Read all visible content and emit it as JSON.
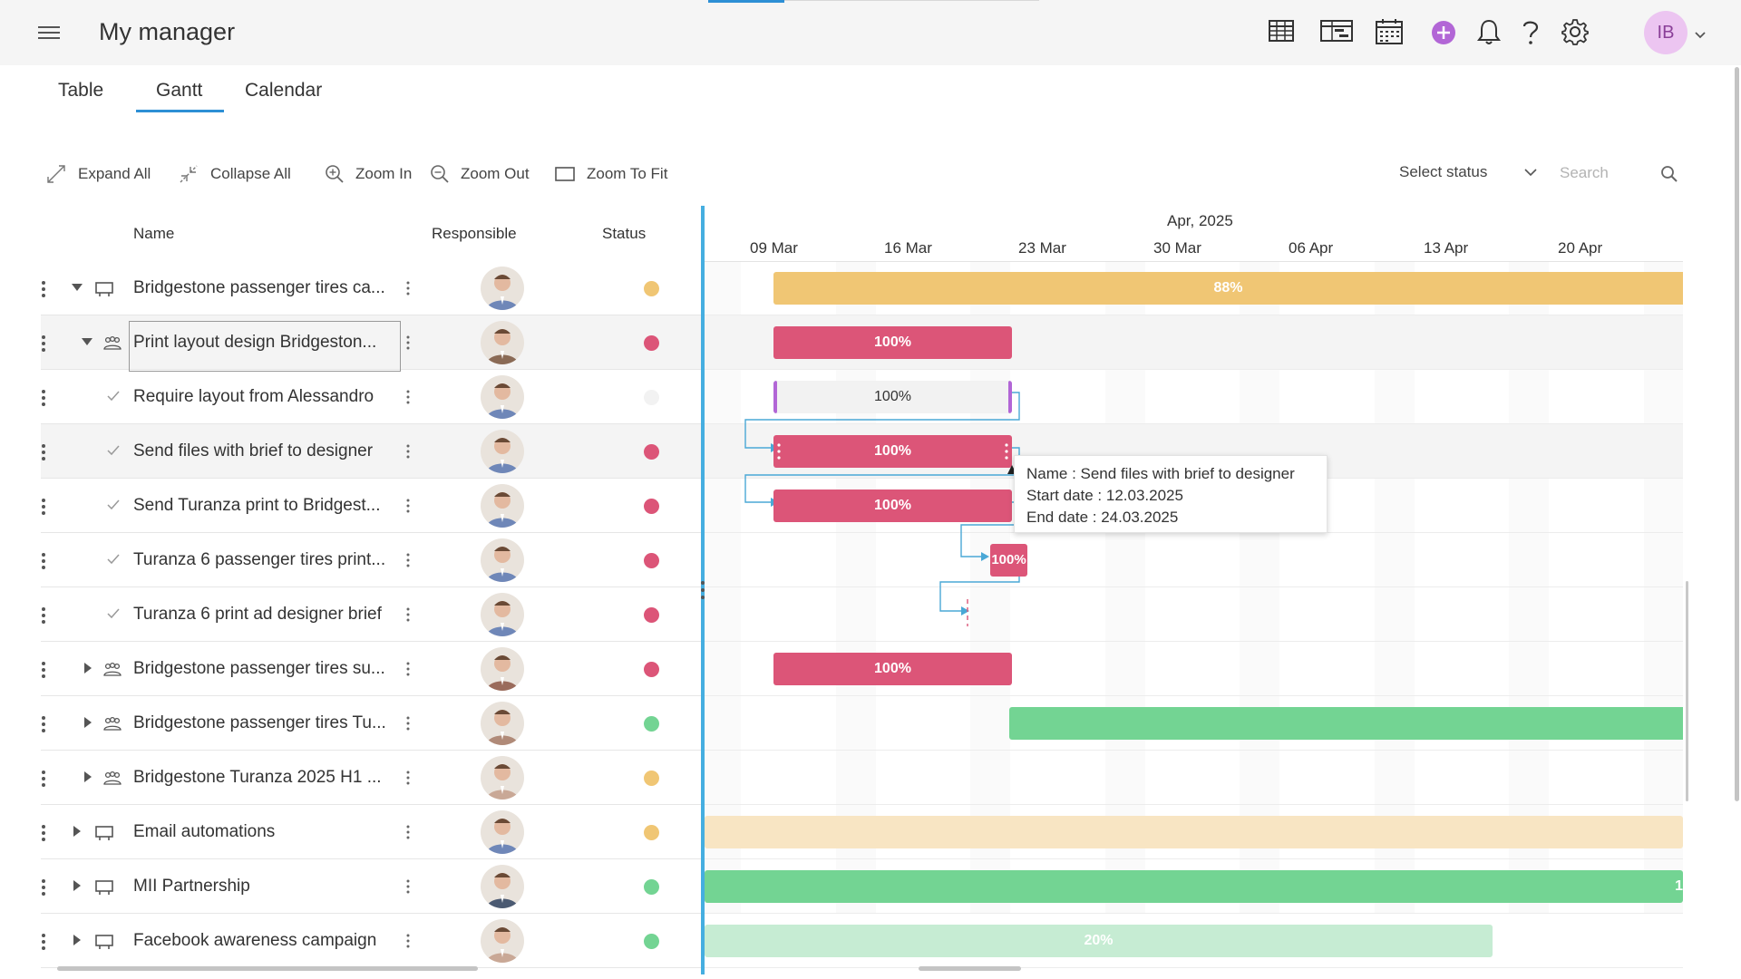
{
  "header": {
    "title": "My manager",
    "user_initials": "IB"
  },
  "tabs": [
    {
      "label": "Table"
    },
    {
      "label": "Gantt"
    },
    {
      "label": "Calendar"
    }
  ],
  "toolbar": {
    "expand_all": "Expand All",
    "collapse_all": "Collapse All",
    "zoom_in": "Zoom In",
    "zoom_out": "Zoom Out",
    "zoom_to_fit": "Zoom To Fit",
    "status_select": "Select status",
    "search_placeholder": "Search"
  },
  "grid": {
    "columns": {
      "name": "Name",
      "responsible": "Responsible",
      "status": "Status"
    },
    "rows": [
      {
        "name": "Bridgestone passenger tires ca...",
        "status": "yellow",
        "type": "project",
        "expanded": true
      },
      {
        "name": "Print layout design Bridgeston...",
        "status": "red",
        "type": "group",
        "expanded": true
      },
      {
        "name": "Require layout from Alessandro",
        "status": "empty",
        "type": "task"
      },
      {
        "name": "Send files with brief to designer",
        "status": "red",
        "type": "task"
      },
      {
        "name": "Send Turanza print to Bridgest...",
        "status": "red",
        "type": "task"
      },
      {
        "name": "Turanza 6 passenger tires print...",
        "status": "red",
        "type": "task"
      },
      {
        "name": "Turanza 6 print ad designer brief",
        "status": "red",
        "type": "task"
      },
      {
        "name": "Bridgestone passenger tires su...",
        "status": "red",
        "type": "group"
      },
      {
        "name": "Bridgestone passenger tires Tu...",
        "status": "green",
        "type": "group"
      },
      {
        "name": "Bridgestone Turanza 2025 H1 ...",
        "status": "yellow",
        "type": "group"
      },
      {
        "name": "Email automations",
        "status": "yellow",
        "type": "project"
      },
      {
        "name": "MII Partnership",
        "status": "green",
        "type": "project"
      },
      {
        "name": "Facebook awareness campaign",
        "status": "green",
        "type": "project"
      }
    ]
  },
  "timeline": {
    "month": "Apr, 2025",
    "weeks": [
      "09 Mar",
      "16 Mar",
      "23 Mar",
      "30 Mar",
      "06 Apr",
      "13 Apr",
      "20 Apr"
    ],
    "bars": [
      {
        "row": 0,
        "label": "88%"
      },
      {
        "row": 1,
        "label": "100%"
      },
      {
        "row": 2,
        "label": "100%"
      },
      {
        "row": 3,
        "label": "100%"
      },
      {
        "row": 4,
        "label": "100%"
      },
      {
        "row": 5,
        "label": "100%"
      },
      {
        "row": 7,
        "label": "100%"
      },
      {
        "row": 8,
        "label": ""
      },
      {
        "row": 10,
        "label": ""
      },
      {
        "row": 11,
        "label": "1"
      },
      {
        "row": 12,
        "label": "20%"
      }
    ]
  },
  "tooltip": {
    "name": "Name : Send files with brief to designer",
    "start": "Start date : 12.03.2025",
    "end": "End date : 24.03.2025"
  },
  "colors": {
    "accent": "#2d8fd5",
    "yellow": "#f0c674",
    "red": "#dc5578",
    "green": "#73d493",
    "light_yellow": "#f8e5c3",
    "light_green": "#c6ecd3",
    "purple": "#b266d6"
  }
}
